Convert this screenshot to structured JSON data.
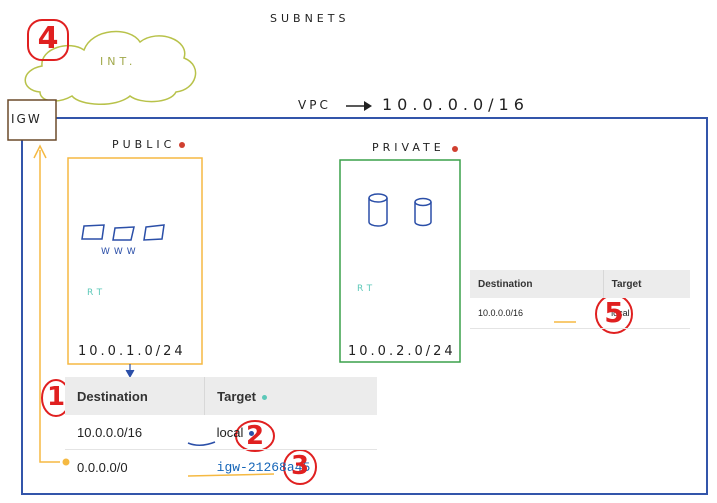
{
  "title": "SUBNETS",
  "vpc_label": "VPC",
  "vpc_cidr": "10.0.0.0/16",
  "igw_label": "IGW",
  "internet_label": "INT.",
  "public_subnet": {
    "label": "PUBLIC",
    "servers_label": "WWW",
    "rt_label": "RT",
    "cidr": "10.0.1.0/24",
    "color": "#f5b942"
  },
  "private_subnet": {
    "label": "PRIVATE",
    "rt_label": "RT",
    "cidr": "10.0.2.0/24",
    "color": "#3aa04a"
  },
  "public_route_table": {
    "headers": [
      "Destination",
      "Target"
    ],
    "rows": [
      {
        "destination": "10.0.0.0/16",
        "target": "local"
      },
      {
        "destination": "0.0.0.0/0",
        "target": "igw-21268a45"
      }
    ]
  },
  "private_route_table": {
    "headers": [
      "Destination",
      "Target"
    ],
    "rows": [
      {
        "destination": "10.0.0.0/16",
        "target": "local"
      }
    ]
  },
  "callouts": [
    "1",
    "2",
    "3",
    "4",
    "5"
  ],
  "colors": {
    "vpc_border": "#3355aa",
    "igw_border": "#6b4a2a",
    "cloud": "#b8c24a",
    "annotation_red": "#e02020",
    "public_orange": "#f5b942",
    "private_green": "#3aa04a",
    "icon_blue": "#2b4fa8",
    "rt_teal": "#5cc8b8"
  },
  "icons": [
    "server-icon",
    "database-icon",
    "cloud-icon",
    "arrow-icon"
  ]
}
